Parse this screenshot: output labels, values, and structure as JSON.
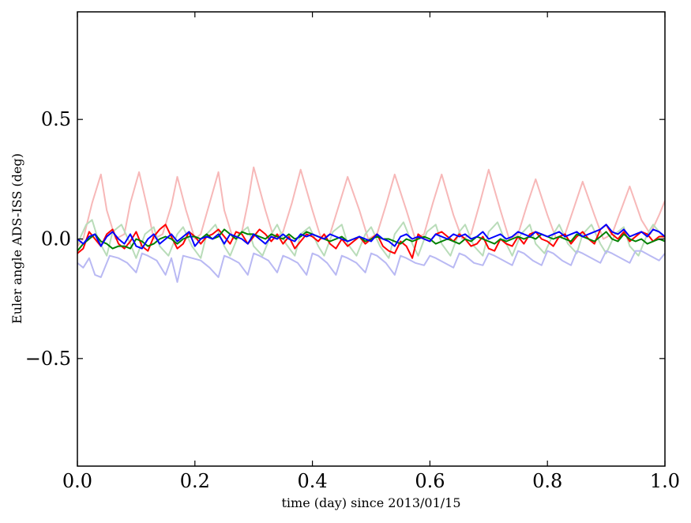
{
  "chart_data": {
    "type": "line",
    "title": "",
    "xlabel": "time (day) since 2013/01/15",
    "ylabel": "Euler angle ADS-ISS (deg)",
    "xlim": [
      0.0,
      1.0
    ],
    "ylim": [
      -0.95,
      0.95
    ],
    "xticks": [
      0.0,
      0.2,
      0.4,
      0.6,
      0.8,
      1.0
    ],
    "xtick_labels": [
      "0.0",
      "0.2",
      "0.4",
      "0.6",
      "0.8",
      "1.0"
    ],
    "yticks": [
      -0.5,
      0.0,
      0.5
    ],
    "ytick_labels": [
      "−0.5",
      "0.0",
      "0.5"
    ],
    "grid": false,
    "series": [
      {
        "color": "#f7b8b8",
        "x": [
          0.0,
          0.01,
          0.025,
          0.04,
          0.05,
          0.065,
          0.08,
          0.09,
          0.105,
          0.12,
          0.13,
          0.145,
          0.16,
          0.17,
          0.185,
          0.2,
          0.21,
          0.225,
          0.24,
          0.25,
          0.265,
          0.28,
          0.29,
          0.3,
          0.32,
          0.335,
          0.35,
          0.365,
          0.38,
          0.4,
          0.415,
          0.43,
          0.445,
          0.46,
          0.48,
          0.495,
          0.51,
          0.525,
          0.54,
          0.56,
          0.575,
          0.59,
          0.605,
          0.62,
          0.64,
          0.655,
          0.67,
          0.685,
          0.7,
          0.72,
          0.735,
          0.75,
          0.765,
          0.78,
          0.8,
          0.815,
          0.83,
          0.845,
          0.86,
          0.88,
          0.895,
          0.91,
          0.925,
          0.94,
          0.96,
          0.975,
          0.99,
          1.0
        ],
        "y": [
          -0.03,
          0.0,
          0.15,
          0.27,
          0.12,
          0.0,
          0.02,
          0.15,
          0.28,
          0.12,
          0.0,
          0.02,
          0.14,
          0.26,
          0.12,
          0.0,
          0.02,
          0.15,
          0.28,
          0.12,
          0.0,
          0.03,
          0.15,
          0.3,
          0.12,
          0.0,
          0.03,
          0.15,
          0.29,
          0.12,
          0.0,
          0.02,
          0.14,
          0.26,
          0.12,
          0.0,
          0.02,
          0.14,
          0.27,
          0.12,
          0.0,
          0.02,
          0.15,
          0.27,
          0.1,
          0.0,
          0.02,
          0.15,
          0.29,
          0.12,
          0.0,
          0.02,
          0.14,
          0.25,
          0.1,
          0.0,
          0.02,
          0.13,
          0.24,
          0.1,
          0.0,
          0.02,
          0.12,
          0.22,
          0.08,
          0.02,
          0.1,
          0.16
        ]
      },
      {
        "color": "#b9dcb9",
        "x": [
          0.0,
          0.015,
          0.025,
          0.035,
          0.05,
          0.06,
          0.075,
          0.09,
          0.1,
          0.115,
          0.13,
          0.14,
          0.155,
          0.17,
          0.18,
          0.195,
          0.21,
          0.22,
          0.235,
          0.25,
          0.26,
          0.275,
          0.29,
          0.3,
          0.315,
          0.33,
          0.34,
          0.355,
          0.37,
          0.38,
          0.395,
          0.41,
          0.42,
          0.435,
          0.45,
          0.46,
          0.475,
          0.49,
          0.5,
          0.515,
          0.53,
          0.54,
          0.555,
          0.57,
          0.58,
          0.595,
          0.61,
          0.62,
          0.635,
          0.65,
          0.66,
          0.675,
          0.69,
          0.7,
          0.715,
          0.73,
          0.74,
          0.755,
          0.77,
          0.78,
          0.795,
          0.81,
          0.82,
          0.835,
          0.85,
          0.86,
          0.875,
          0.89,
          0.9,
          0.915,
          0.93,
          0.94,
          0.955,
          0.97,
          0.98,
          1.0
        ],
        "y": [
          -0.02,
          0.06,
          0.08,
          0.0,
          -0.07,
          0.03,
          0.06,
          -0.02,
          -0.08,
          0.02,
          0.05,
          -0.03,
          -0.07,
          0.02,
          0.05,
          -0.03,
          -0.08,
          0.02,
          0.06,
          -0.03,
          -0.07,
          0.02,
          0.05,
          -0.03,
          -0.07,
          0.02,
          0.06,
          -0.02,
          -0.07,
          0.02,
          0.05,
          -0.03,
          -0.07,
          0.03,
          0.06,
          -0.02,
          -0.07,
          0.02,
          0.05,
          -0.03,
          -0.08,
          0.02,
          0.07,
          -0.02,
          -0.07,
          0.03,
          0.06,
          -0.02,
          -0.07,
          0.03,
          0.06,
          -0.03,
          -0.07,
          0.03,
          0.07,
          -0.02,
          -0.07,
          0.02,
          0.06,
          -0.02,
          -0.06,
          0.02,
          0.06,
          -0.02,
          -0.06,
          0.02,
          0.06,
          -0.02,
          -0.06,
          0.02,
          0.05,
          -0.03,
          -0.07,
          0.02,
          0.06,
          0.0
        ]
      },
      {
        "color": "#b9b9f3",
        "x": [
          0.0,
          0.01,
          0.02,
          0.03,
          0.04,
          0.055,
          0.07,
          0.085,
          0.1,
          0.11,
          0.12,
          0.135,
          0.15,
          0.16,
          0.17,
          0.18,
          0.195,
          0.21,
          0.225,
          0.24,
          0.25,
          0.26,
          0.275,
          0.29,
          0.3,
          0.31,
          0.325,
          0.34,
          0.35,
          0.36,
          0.375,
          0.39,
          0.4,
          0.41,
          0.425,
          0.44,
          0.45,
          0.46,
          0.475,
          0.49,
          0.5,
          0.51,
          0.525,
          0.54,
          0.55,
          0.56,
          0.575,
          0.59,
          0.6,
          0.61,
          0.625,
          0.64,
          0.65,
          0.66,
          0.675,
          0.69,
          0.7,
          0.71,
          0.725,
          0.74,
          0.75,
          0.76,
          0.775,
          0.79,
          0.8,
          0.81,
          0.825,
          0.84,
          0.85,
          0.86,
          0.875,
          0.89,
          0.9,
          0.91,
          0.925,
          0.94,
          0.95,
          0.96,
          0.975,
          0.99,
          1.0
        ],
        "y": [
          -0.1,
          -0.12,
          -0.08,
          -0.15,
          -0.16,
          -0.07,
          -0.08,
          -0.1,
          -0.14,
          -0.06,
          -0.07,
          -0.09,
          -0.15,
          -0.08,
          -0.18,
          -0.07,
          -0.08,
          -0.09,
          -0.12,
          -0.16,
          -0.07,
          -0.08,
          -0.1,
          -0.15,
          -0.06,
          -0.07,
          -0.09,
          -0.14,
          -0.07,
          -0.08,
          -0.1,
          -0.15,
          -0.06,
          -0.07,
          -0.1,
          -0.15,
          -0.07,
          -0.08,
          -0.1,
          -0.14,
          -0.06,
          -0.07,
          -0.1,
          -0.15,
          -0.07,
          -0.08,
          -0.1,
          -0.11,
          -0.07,
          -0.08,
          -0.1,
          -0.12,
          -0.06,
          -0.07,
          -0.1,
          -0.11,
          -0.06,
          -0.07,
          -0.09,
          -0.11,
          -0.05,
          -0.06,
          -0.09,
          -0.11,
          -0.05,
          -0.06,
          -0.09,
          -0.11,
          -0.05,
          -0.06,
          -0.08,
          -0.1,
          -0.05,
          -0.06,
          -0.08,
          -0.1,
          -0.05,
          -0.05,
          -0.07,
          -0.09,
          -0.06
        ]
      },
      {
        "color": "#ff0000",
        "x": [
          0.0,
          0.01,
          0.02,
          0.03,
          0.04,
          0.05,
          0.06,
          0.07,
          0.08,
          0.09,
          0.1,
          0.11,
          0.12,
          0.13,
          0.14,
          0.15,
          0.16,
          0.17,
          0.18,
          0.19,
          0.2,
          0.21,
          0.22,
          0.23,
          0.24,
          0.25,
          0.26,
          0.27,
          0.28,
          0.29,
          0.3,
          0.31,
          0.32,
          0.33,
          0.34,
          0.35,
          0.36,
          0.37,
          0.38,
          0.39,
          0.4,
          0.41,
          0.42,
          0.43,
          0.44,
          0.45,
          0.46,
          0.47,
          0.48,
          0.49,
          0.5,
          0.51,
          0.52,
          0.53,
          0.54,
          0.55,
          0.56,
          0.57,
          0.58,
          0.59,
          0.6,
          0.61,
          0.62,
          0.63,
          0.64,
          0.65,
          0.66,
          0.67,
          0.68,
          0.69,
          0.7,
          0.71,
          0.72,
          0.73,
          0.74,
          0.75,
          0.76,
          0.77,
          0.78,
          0.79,
          0.8,
          0.81,
          0.82,
          0.83,
          0.84,
          0.85,
          0.86,
          0.87,
          0.88,
          0.89,
          0.9,
          0.91,
          0.92,
          0.93,
          0.94,
          0.95,
          0.96,
          0.97,
          0.98,
          0.99,
          1.0
        ],
        "y": [
          -0.06,
          -0.04,
          0.03,
          0.0,
          -0.03,
          0.02,
          0.04,
          -0.02,
          -0.04,
          -0.01,
          0.03,
          -0.03,
          -0.05,
          0.01,
          0.04,
          0.06,
          0.01,
          -0.04,
          -0.02,
          0.03,
          0.01,
          -0.02,
          0.01,
          0.02,
          0.04,
          0.01,
          -0.02,
          0.03,
          0.02,
          -0.02,
          0.01,
          0.04,
          0.02,
          -0.01,
          0.02,
          -0.02,
          0.01,
          -0.04,
          -0.01,
          0.02,
          0.01,
          -0.01,
          0.02,
          -0.02,
          -0.04,
          0.0,
          -0.03,
          -0.01,
          0.01,
          -0.02,
          0.0,
          0.02,
          -0.03,
          -0.05,
          -0.06,
          -0.01,
          -0.03,
          -0.08,
          0.02,
          0.0,
          -0.01,
          0.02,
          0.03,
          0.01,
          -0.01,
          0.02,
          0.0,
          -0.03,
          -0.02,
          0.01,
          -0.04,
          -0.05,
          0.0,
          -0.02,
          -0.03,
          0.01,
          -0.02,
          0.02,
          0.03,
          0.0,
          -0.01,
          -0.03,
          0.01,
          0.02,
          -0.02,
          0.01,
          0.03,
          0.0,
          -0.02,
          0.04,
          0.06,
          0.02,
          0.0,
          0.03,
          -0.01,
          0.01,
          0.03,
          0.02,
          -0.01,
          0.01,
          0.01
        ]
      },
      {
        "color": "#008000",
        "x": [
          0.0,
          0.01,
          0.02,
          0.03,
          0.04,
          0.05,
          0.06,
          0.07,
          0.08,
          0.09,
          0.1,
          0.11,
          0.12,
          0.13,
          0.14,
          0.15,
          0.16,
          0.17,
          0.18,
          0.19,
          0.2,
          0.21,
          0.22,
          0.23,
          0.24,
          0.25,
          0.26,
          0.27,
          0.28,
          0.29,
          0.3,
          0.31,
          0.32,
          0.33,
          0.34,
          0.35,
          0.36,
          0.37,
          0.38,
          0.39,
          0.4,
          0.41,
          0.42,
          0.43,
          0.44,
          0.45,
          0.46,
          0.47,
          0.48,
          0.49,
          0.5,
          0.51,
          0.52,
          0.53,
          0.54,
          0.55,
          0.56,
          0.57,
          0.58,
          0.59,
          0.6,
          0.61,
          0.62,
          0.63,
          0.64,
          0.65,
          0.66,
          0.67,
          0.68,
          0.69,
          0.7,
          0.71,
          0.72,
          0.73,
          0.74,
          0.75,
          0.76,
          0.77,
          0.78,
          0.79,
          0.8,
          0.81,
          0.82,
          0.83,
          0.84,
          0.85,
          0.86,
          0.87,
          0.88,
          0.89,
          0.9,
          0.91,
          0.92,
          0.93,
          0.94,
          0.95,
          0.96,
          0.97,
          0.98,
          0.99,
          1.0
        ],
        "y": [
          -0.05,
          -0.02,
          0.0,
          0.02,
          -0.01,
          -0.02,
          -0.04,
          -0.03,
          -0.03,
          -0.04,
          0.0,
          -0.01,
          -0.03,
          -0.02,
          0.0,
          0.01,
          0.0,
          -0.02,
          0.0,
          0.01,
          0.01,
          0.0,
          0.02,
          0.0,
          0.01,
          0.04,
          0.02,
          0.0,
          0.03,
          0.02,
          0.02,
          0.01,
          0.0,
          0.02,
          0.01,
          0.0,
          0.02,
          0.0,
          0.01,
          0.03,
          0.02,
          0.01,
          0.0,
          -0.01,
          0.0,
          0.01,
          -0.01,
          0.0,
          0.01,
          -0.01,
          0.0,
          0.01,
          0.0,
          0.0,
          -0.01,
          -0.02,
          0.0,
          -0.01,
          0.0,
          0.01,
          0.0,
          -0.02,
          -0.01,
          0.0,
          -0.01,
          -0.02,
          0.0,
          -0.01,
          0.01,
          0.0,
          -0.01,
          -0.02,
          0.0,
          -0.01,
          0.0,
          0.01,
          0.0,
          0.01,
          0.0,
          0.02,
          0.01,
          0.0,
          0.01,
          0.0,
          -0.01,
          0.02,
          0.01,
          0.0,
          -0.01,
          0.01,
          0.03,
          0.0,
          -0.01,
          0.02,
          0.0,
          -0.01,
          0.0,
          -0.02,
          -0.01,
          0.0,
          -0.01
        ]
      },
      {
        "color": "#0000ff",
        "x": [
          0.0,
          0.01,
          0.02,
          0.03,
          0.04,
          0.05,
          0.06,
          0.07,
          0.08,
          0.09,
          0.1,
          0.11,
          0.12,
          0.13,
          0.14,
          0.15,
          0.16,
          0.17,
          0.18,
          0.19,
          0.2,
          0.21,
          0.22,
          0.23,
          0.24,
          0.25,
          0.26,
          0.27,
          0.28,
          0.29,
          0.3,
          0.31,
          0.32,
          0.33,
          0.34,
          0.35,
          0.36,
          0.37,
          0.38,
          0.39,
          0.4,
          0.41,
          0.42,
          0.43,
          0.44,
          0.45,
          0.46,
          0.47,
          0.48,
          0.49,
          0.5,
          0.51,
          0.52,
          0.53,
          0.54,
          0.55,
          0.56,
          0.57,
          0.58,
          0.59,
          0.6,
          0.61,
          0.62,
          0.63,
          0.64,
          0.65,
          0.66,
          0.67,
          0.68,
          0.69,
          0.7,
          0.71,
          0.72,
          0.73,
          0.74,
          0.75,
          0.76,
          0.77,
          0.78,
          0.79,
          0.8,
          0.81,
          0.82,
          0.83,
          0.84,
          0.85,
          0.86,
          0.87,
          0.88,
          0.89,
          0.9,
          0.91,
          0.92,
          0.93,
          0.94,
          0.95,
          0.96,
          0.97,
          0.98,
          0.99,
          1.0
        ],
        "y": [
          0.0,
          -0.02,
          0.01,
          0.02,
          -0.03,
          0.01,
          0.03,
          0.0,
          -0.02,
          0.02,
          -0.03,
          -0.04,
          0.0,
          0.02,
          -0.02,
          0.0,
          0.02,
          -0.01,
          0.01,
          0.03,
          -0.03,
          0.0,
          0.01,
          0.0,
          0.02,
          -0.02,
          0.02,
          0.01,
          0.0,
          -0.02,
          0.02,
          0.0,
          -0.02,
          0.01,
          0.0,
          0.02,
          0.0,
          -0.01,
          0.02,
          0.01,
          0.02,
          0.01,
          0.0,
          0.02,
          0.01,
          0.0,
          -0.01,
          0.0,
          0.01,
          0.0,
          -0.01,
          0.02,
          0.0,
          -0.01,
          -0.03,
          0.01,
          0.02,
          0.0,
          0.01,
          0.0,
          -0.01,
          0.02,
          0.01,
          0.0,
          0.02,
          0.01,
          0.02,
          0.0,
          0.01,
          0.03,
          0.0,
          0.01,
          0.02,
          0.0,
          0.01,
          0.03,
          0.02,
          0.01,
          0.03,
          0.02,
          0.01,
          0.02,
          0.03,
          0.01,
          0.02,
          0.03,
          0.01,
          0.02,
          0.03,
          0.04,
          0.06,
          0.03,
          0.02,
          0.04,
          0.01,
          0.02,
          0.03,
          0.01,
          0.04,
          0.03,
          0.01
        ]
      }
    ]
  }
}
